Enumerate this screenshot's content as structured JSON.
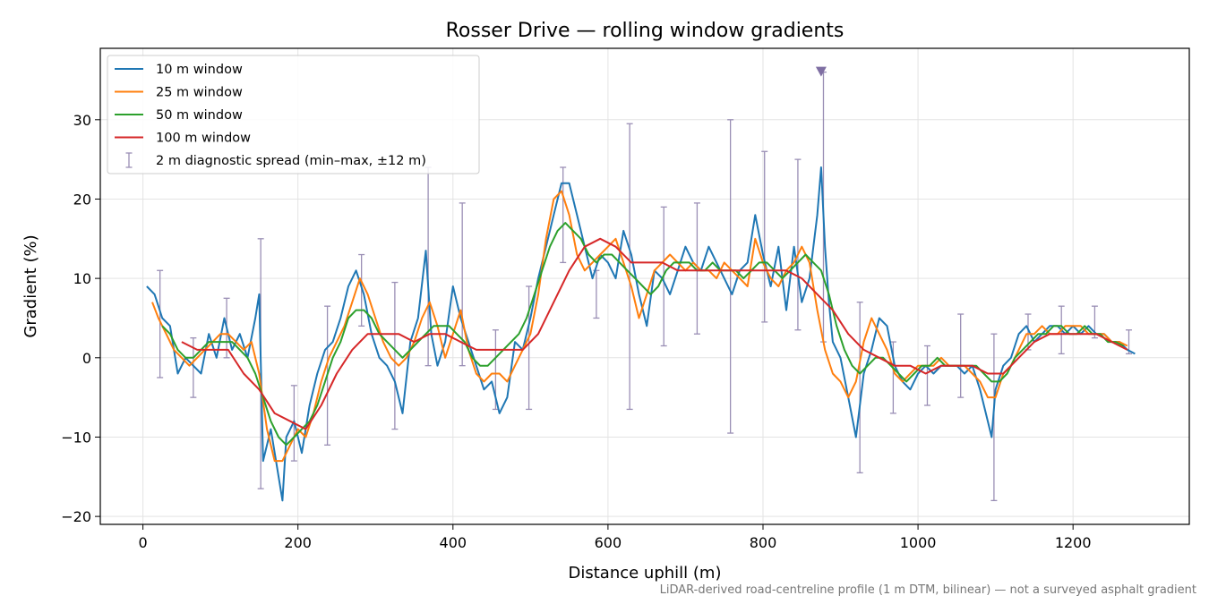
{
  "chart_data": {
    "type": "line",
    "title": "Rosser Drive — rolling window gradients",
    "xlabel": "Distance uphill (m)",
    "ylabel": "Gradient (%)",
    "xlim": [
      -55,
      1350
    ],
    "ylim": [
      -21,
      39
    ],
    "xticks": [
      0,
      200,
      400,
      600,
      800,
      1000,
      1200
    ],
    "yticks": [
      -20,
      -10,
      0,
      10,
      20,
      30
    ],
    "xtick_labels": [
      "0",
      "200",
      "400",
      "600",
      "800",
      "1000",
      "1200"
    ],
    "ytick_labels": [
      "−20",
      "−10",
      "0",
      "10",
      "20",
      "30"
    ],
    "grid": true,
    "legend_position": "top-left",
    "footnote": "LiDAR-derived road-centreline profile (1 m DTM, bilinear) — not a surveyed asphalt gradient",
    "series": [
      {
        "name": "10 m window",
        "color": "#1f77b4",
        "x": [
          5,
          15,
          25,
          35,
          45,
          55,
          65,
          75,
          85,
          95,
          105,
          115,
          125,
          135,
          145,
          150,
          155,
          165,
          175,
          180,
          185,
          195,
          205,
          215,
          225,
          235,
          245,
          255,
          265,
          275,
          285,
          295,
          305,
          315,
          325,
          335,
          345,
          355,
          365,
          372,
          380,
          390,
          400,
          410,
          420,
          430,
          440,
          450,
          460,
          470,
          480,
          490,
          500,
          510,
          520,
          530,
          540,
          550,
          560,
          570,
          580,
          590,
          600,
          610,
          620,
          630,
          640,
          650,
          660,
          670,
          680,
          690,
          700,
          710,
          720,
          730,
          740,
          750,
          760,
          770,
          780,
          790,
          800,
          810,
          820,
          830,
          840,
          850,
          860,
          870,
          875,
          880,
          885,
          890,
          900,
          910,
          920,
          930,
          940,
          950,
          960,
          970,
          980,
          990,
          1000,
          1010,
          1020,
          1030,
          1040,
          1050,
          1060,
          1070,
          1080,
          1090,
          1095,
          1100,
          1110,
          1120,
          1130,
          1140,
          1150,
          1160,
          1170,
          1180,
          1190,
          1200,
          1210,
          1220,
          1230,
          1240,
          1250,
          1260,
          1270,
          1280
        ],
        "y": [
          9,
          8,
          5,
          4,
          -2,
          0,
          -1,
          -2,
          3,
          0,
          5,
          1,
          3,
          0,
          5,
          8,
          -13,
          -9,
          -15,
          -18,
          -10,
          -8,
          -12,
          -6,
          -2,
          1,
          2,
          5,
          9,
          11,
          8,
          3,
          0,
          -1,
          -3,
          -7,
          2,
          5,
          13.5,
          3,
          -1,
          2,
          9,
          5,
          2,
          -1,
          -4,
          -3,
          -7,
          -5,
          2,
          1,
          5,
          10,
          14,
          18,
          22,
          22,
          18,
          14,
          10,
          13,
          12,
          10,
          16,
          13,
          8,
          4,
          11,
          10,
          8,
          11,
          14,
          12,
          11,
          14,
          12,
          10,
          8,
          11,
          12,
          18,
          13,
          9,
          14,
          6,
          14,
          7,
          10,
          18,
          24,
          14,
          7,
          2,
          0,
          -5,
          -10,
          -2,
          1,
          5,
          4,
          -1,
          -3,
          -4,
          -2,
          -1,
          -2,
          -1,
          -1,
          -1,
          -2,
          -1,
          -4,
          -8,
          -10,
          -4,
          -1,
          0,
          3,
          4,
          2,
          3,
          4,
          4,
          3,
          4,
          3,
          4,
          3,
          3,
          2,
          2,
          1,
          0.5
        ]
      },
      {
        "name": "25 m window",
        "color": "#ff7f0e",
        "x": [
          12,
          20,
          30,
          40,
          50,
          60,
          70,
          80,
          90,
          100,
          110,
          120,
          130,
          140,
          150,
          160,
          170,
          180,
          190,
          200,
          210,
          220,
          230,
          240,
          250,
          260,
          270,
          280,
          290,
          300,
          310,
          320,
          330,
          340,
          350,
          360,
          370,
          380,
          390,
          400,
          410,
          420,
          430,
          440,
          450,
          460,
          470,
          480,
          490,
          500,
          510,
          520,
          530,
          540,
          550,
          560,
          570,
          580,
          590,
          600,
          610,
          620,
          630,
          640,
          650,
          660,
          670,
          680,
          690,
          700,
          710,
          720,
          730,
          740,
          750,
          760,
          770,
          780,
          790,
          800,
          810,
          820,
          830,
          840,
          850,
          860,
          870,
          880,
          890,
          900,
          910,
          920,
          930,
          940,
          950,
          960,
          970,
          980,
          990,
          1000,
          1010,
          1020,
          1030,
          1040,
          1050,
          1060,
          1070,
          1080,
          1090,
          1100,
          1110,
          1120,
          1130,
          1140,
          1150,
          1160,
          1170,
          1180,
          1190,
          1200,
          1210,
          1220,
          1230,
          1240,
          1250,
          1260,
          1270
        ],
        "y": [
          7,
          5,
          3,
          1,
          0,
          -1,
          0,
          1,
          2,
          3,
          3,
          2,
          1,
          2,
          -2,
          -9,
          -13,
          -13,
          -11,
          -9,
          -10,
          -7,
          -3,
          0,
          2,
          4,
          7,
          10,
          8,
          5,
          2,
          0,
          -1,
          0,
          2,
          5,
          7,
          4,
          0,
          3,
          6,
          1,
          -2,
          -3,
          -2,
          -2,
          -3,
          -1,
          1,
          3,
          8,
          15,
          20,
          21,
          18,
          13,
          11,
          12,
          13,
          14,
          15,
          12,
          9,
          5,
          8,
          11,
          12,
          13,
          12,
          11,
          12,
          11,
          11,
          10,
          12,
          11,
          10,
          9,
          15,
          12,
          10,
          9,
          11,
          12,
          14,
          12,
          6,
          1,
          -2,
          -3,
          -5,
          -3,
          2,
          5,
          3,
          1,
          -2,
          -3,
          -2,
          -1,
          -1,
          -1,
          0,
          -1,
          -1,
          -1,
          -2,
          -3,
          -5,
          -5,
          -2,
          -1,
          1,
          3,
          3,
          4,
          3,
          3,
          4,
          4,
          4,
          3,
          3,
          3,
          2,
          2,
          1.5
        ]
      },
      {
        "name": "50 m window",
        "color": "#2ca02c",
        "x": [
          25,
          35,
          45,
          55,
          65,
          75,
          85,
          95,
          105,
          115,
          125,
          135,
          145,
          155,
          165,
          175,
          185,
          195,
          205,
          215,
          225,
          235,
          245,
          255,
          265,
          275,
          285,
          295,
          305,
          315,
          325,
          335,
          345,
          355,
          365,
          375,
          385,
          395,
          405,
          415,
          425,
          435,
          445,
          455,
          465,
          475,
          485,
          495,
          505,
          515,
          525,
          535,
          545,
          555,
          565,
          575,
          585,
          595,
          605,
          615,
          625,
          635,
          645,
          655,
          665,
          675,
          685,
          695,
          705,
          715,
          725,
          735,
          745,
          755,
          765,
          775,
          785,
          795,
          805,
          815,
          825,
          835,
          845,
          855,
          865,
          875,
          885,
          895,
          905,
          915,
          925,
          935,
          945,
          955,
          965,
          975,
          985,
          995,
          1005,
          1015,
          1025,
          1035,
          1045,
          1055,
          1065,
          1075,
          1085,
          1095,
          1105,
          1115,
          1125,
          1135,
          1145,
          1155,
          1165,
          1175,
          1185,
          1195,
          1205,
          1215,
          1225,
          1235,
          1245,
          1255,
          1265
        ],
        "y": [
          4,
          3,
          1,
          0,
          0,
          1,
          2,
          2,
          2,
          2,
          1,
          0,
          -2,
          -5,
          -8,
          -10,
          -11,
          -10,
          -9,
          -8,
          -6,
          -3,
          0,
          2,
          5,
          6,
          6,
          5,
          3,
          2,
          1,
          0,
          1,
          2,
          3,
          4,
          4,
          4,
          3,
          2,
          0,
          -1,
          -1,
          0,
          1,
          2,
          3,
          5,
          8,
          11,
          14,
          16,
          17,
          16,
          15,
          13,
          12,
          13,
          13,
          12,
          11,
          10,
          9,
          8,
          9,
          11,
          12,
          12,
          12,
          11,
          11,
          12,
          11,
          11,
          11,
          10,
          11,
          12,
          12,
          11,
          10,
          11,
          12,
          13,
          12,
          11,
          8,
          4,
          1,
          -1,
          -2,
          -1,
          0,
          0,
          -1,
          -2,
          -3,
          -2,
          -1,
          -1,
          0,
          -1,
          -1,
          -1,
          -1,
          -1,
          -2,
          -3,
          -3,
          -2,
          0,
          1,
          2,
          3,
          3,
          4,
          4,
          3,
          3,
          4,
          3,
          3,
          2,
          2,
          1.5
        ]
      },
      {
        "name": "100 m window",
        "color": "#d62728",
        "x": [
          50,
          70,
          90,
          110,
          130,
          150,
          170,
          190,
          210,
          230,
          250,
          270,
          290,
          310,
          330,
          350,
          370,
          390,
          410,
          430,
          450,
          470,
          490,
          510,
          530,
          550,
          570,
          590,
          610,
          630,
          650,
          670,
          690,
          710,
          730,
          750,
          770,
          790,
          810,
          830,
          850,
          870,
          890,
          910,
          930,
          950,
          970,
          990,
          1010,
          1030,
          1050,
          1070,
          1090,
          1110,
          1130,
          1150,
          1170,
          1190,
          1210,
          1230,
          1250,
          1270
        ],
        "y": [
          2,
          1,
          1,
          1,
          -2,
          -4,
          -7,
          -8,
          -9,
          -6,
          -2,
          1,
          3,
          3,
          3,
          2,
          3,
          3,
          2,
          1,
          1,
          1,
          1,
          3,
          7,
          11,
          14,
          15,
          14,
          12,
          12,
          12,
          11,
          11,
          11,
          11,
          11,
          11,
          11,
          11,
          10,
          8,
          6,
          3,
          1,
          0,
          -1,
          -1,
          -2,
          -1,
          -1,
          -1,
          -2,
          -2,
          0,
          2,
          3,
          3,
          3,
          3,
          2,
          1
        ]
      },
      {
        "name": "2 m diagnostic spread (min–max, ±12 m)",
        "color": "#9a8fb5",
        "kind": "errorbar",
        "x": [
          22,
          65,
          108,
          152,
          195,
          238,
          282,
          325,
          368,
          412,
          455,
          498,
          542,
          585,
          628,
          672,
          715,
          758,
          802,
          845,
          878,
          925,
          968,
          1012,
          1055,
          1098,
          1142,
          1185,
          1228,
          1272
        ],
        "low": [
          -2.5,
          -5,
          0,
          -16.5,
          -13,
          -11,
          4,
          -9,
          -1,
          -1,
          -6.5,
          -6.5,
          12,
          5,
          -6.5,
          1.5,
          3,
          -9.5,
          4.5,
          3.5,
          2,
          -14.5,
          -7,
          -6,
          -5,
          -18,
          1,
          0.5,
          2.5,
          0.5
        ],
        "high": [
          11,
          2.5,
          7.5,
          15,
          -3.5,
          6.5,
          13,
          9.5,
          24,
          19.5,
          3.5,
          9,
          24,
          11,
          29.5,
          19,
          19.5,
          30,
          26,
          25,
          36,
          7,
          2,
          1.5,
          5.5,
          3,
          5.5,
          6.5,
          6.5,
          3.5
        ]
      }
    ],
    "marker": {
      "x": 875,
      "y": 36,
      "color": "#7f6fa3",
      "shape": "triangle-down"
    }
  }
}
